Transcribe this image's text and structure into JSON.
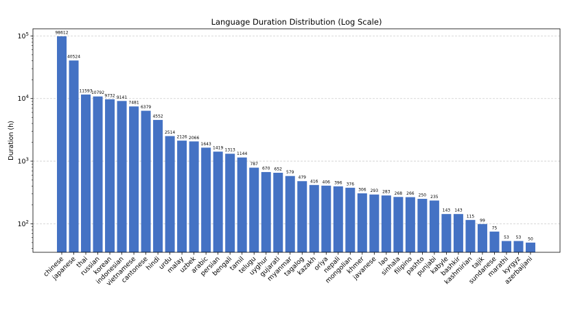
{
  "chart_data": {
    "type": "bar",
    "title": "Language Duration Distribution (Log Scale)",
    "xlabel": "",
    "ylabel": "Duration (h)",
    "yscale": "log",
    "ylim": [
      35,
      130000
    ],
    "y_ticks": [
      {
        "value": 100,
        "base": "10",
        "exp": "2"
      },
      {
        "value": 1000,
        "base": "10",
        "exp": "3"
      },
      {
        "value": 10000,
        "base": "10",
        "exp": "4"
      },
      {
        "value": 100000,
        "base": "10",
        "exp": "5"
      }
    ],
    "grid": "y-dashed",
    "bar_color": "#4472c4",
    "categories": [
      "chinese",
      "japanese",
      "thai",
      "russian",
      "korean",
      "indonesian",
      "vietnamese",
      "cantonese",
      "hindi",
      "urdu",
      "malay",
      "uzbek",
      "arabic",
      "persian",
      "bengali",
      "tamil",
      "telugu",
      "uyghur",
      "gujarati",
      "myanmar",
      "tagalog",
      "kazakh",
      "oriya",
      "nepali",
      "mongolian",
      "khmer",
      "javanese",
      "lao",
      "sinhala",
      "filipino",
      "pashto",
      "punjabi",
      "kabyle",
      "bashkir",
      "kashmirian",
      "tajik",
      "sundanese",
      "marathi",
      "kyrgyz",
      "azerbaijani"
    ],
    "values": [
      98612,
      40524,
      11593,
      10792,
      9732,
      9141,
      7481,
      6379,
      4552,
      2514,
      2126,
      2066,
      1643,
      1419,
      1313,
      1144,
      787,
      670,
      652,
      579,
      479,
      416,
      406,
      396,
      376,
      306,
      293,
      283,
      268,
      266,
      250,
      235,
      143,
      143,
      115,
      99,
      75,
      53,
      53,
      50
    ],
    "value_labels": [
      "98612",
      "40524",
      "11593",
      "10792",
      "9732",
      "9141",
      "7481",
      "6379",
      "4552",
      "2514",
      "2126",
      "2066",
      "1643",
      "1419",
      "1313",
      "1144",
      "787",
      "670",
      "652",
      "579",
      "479",
      "416",
      "406",
      "396",
      "376",
      "306",
      "293",
      "283",
      "268",
      "266",
      "250",
      "235",
      "143",
      "143",
      "115",
      "99",
      "75",
      "53",
      "53",
      "50"
    ]
  }
}
